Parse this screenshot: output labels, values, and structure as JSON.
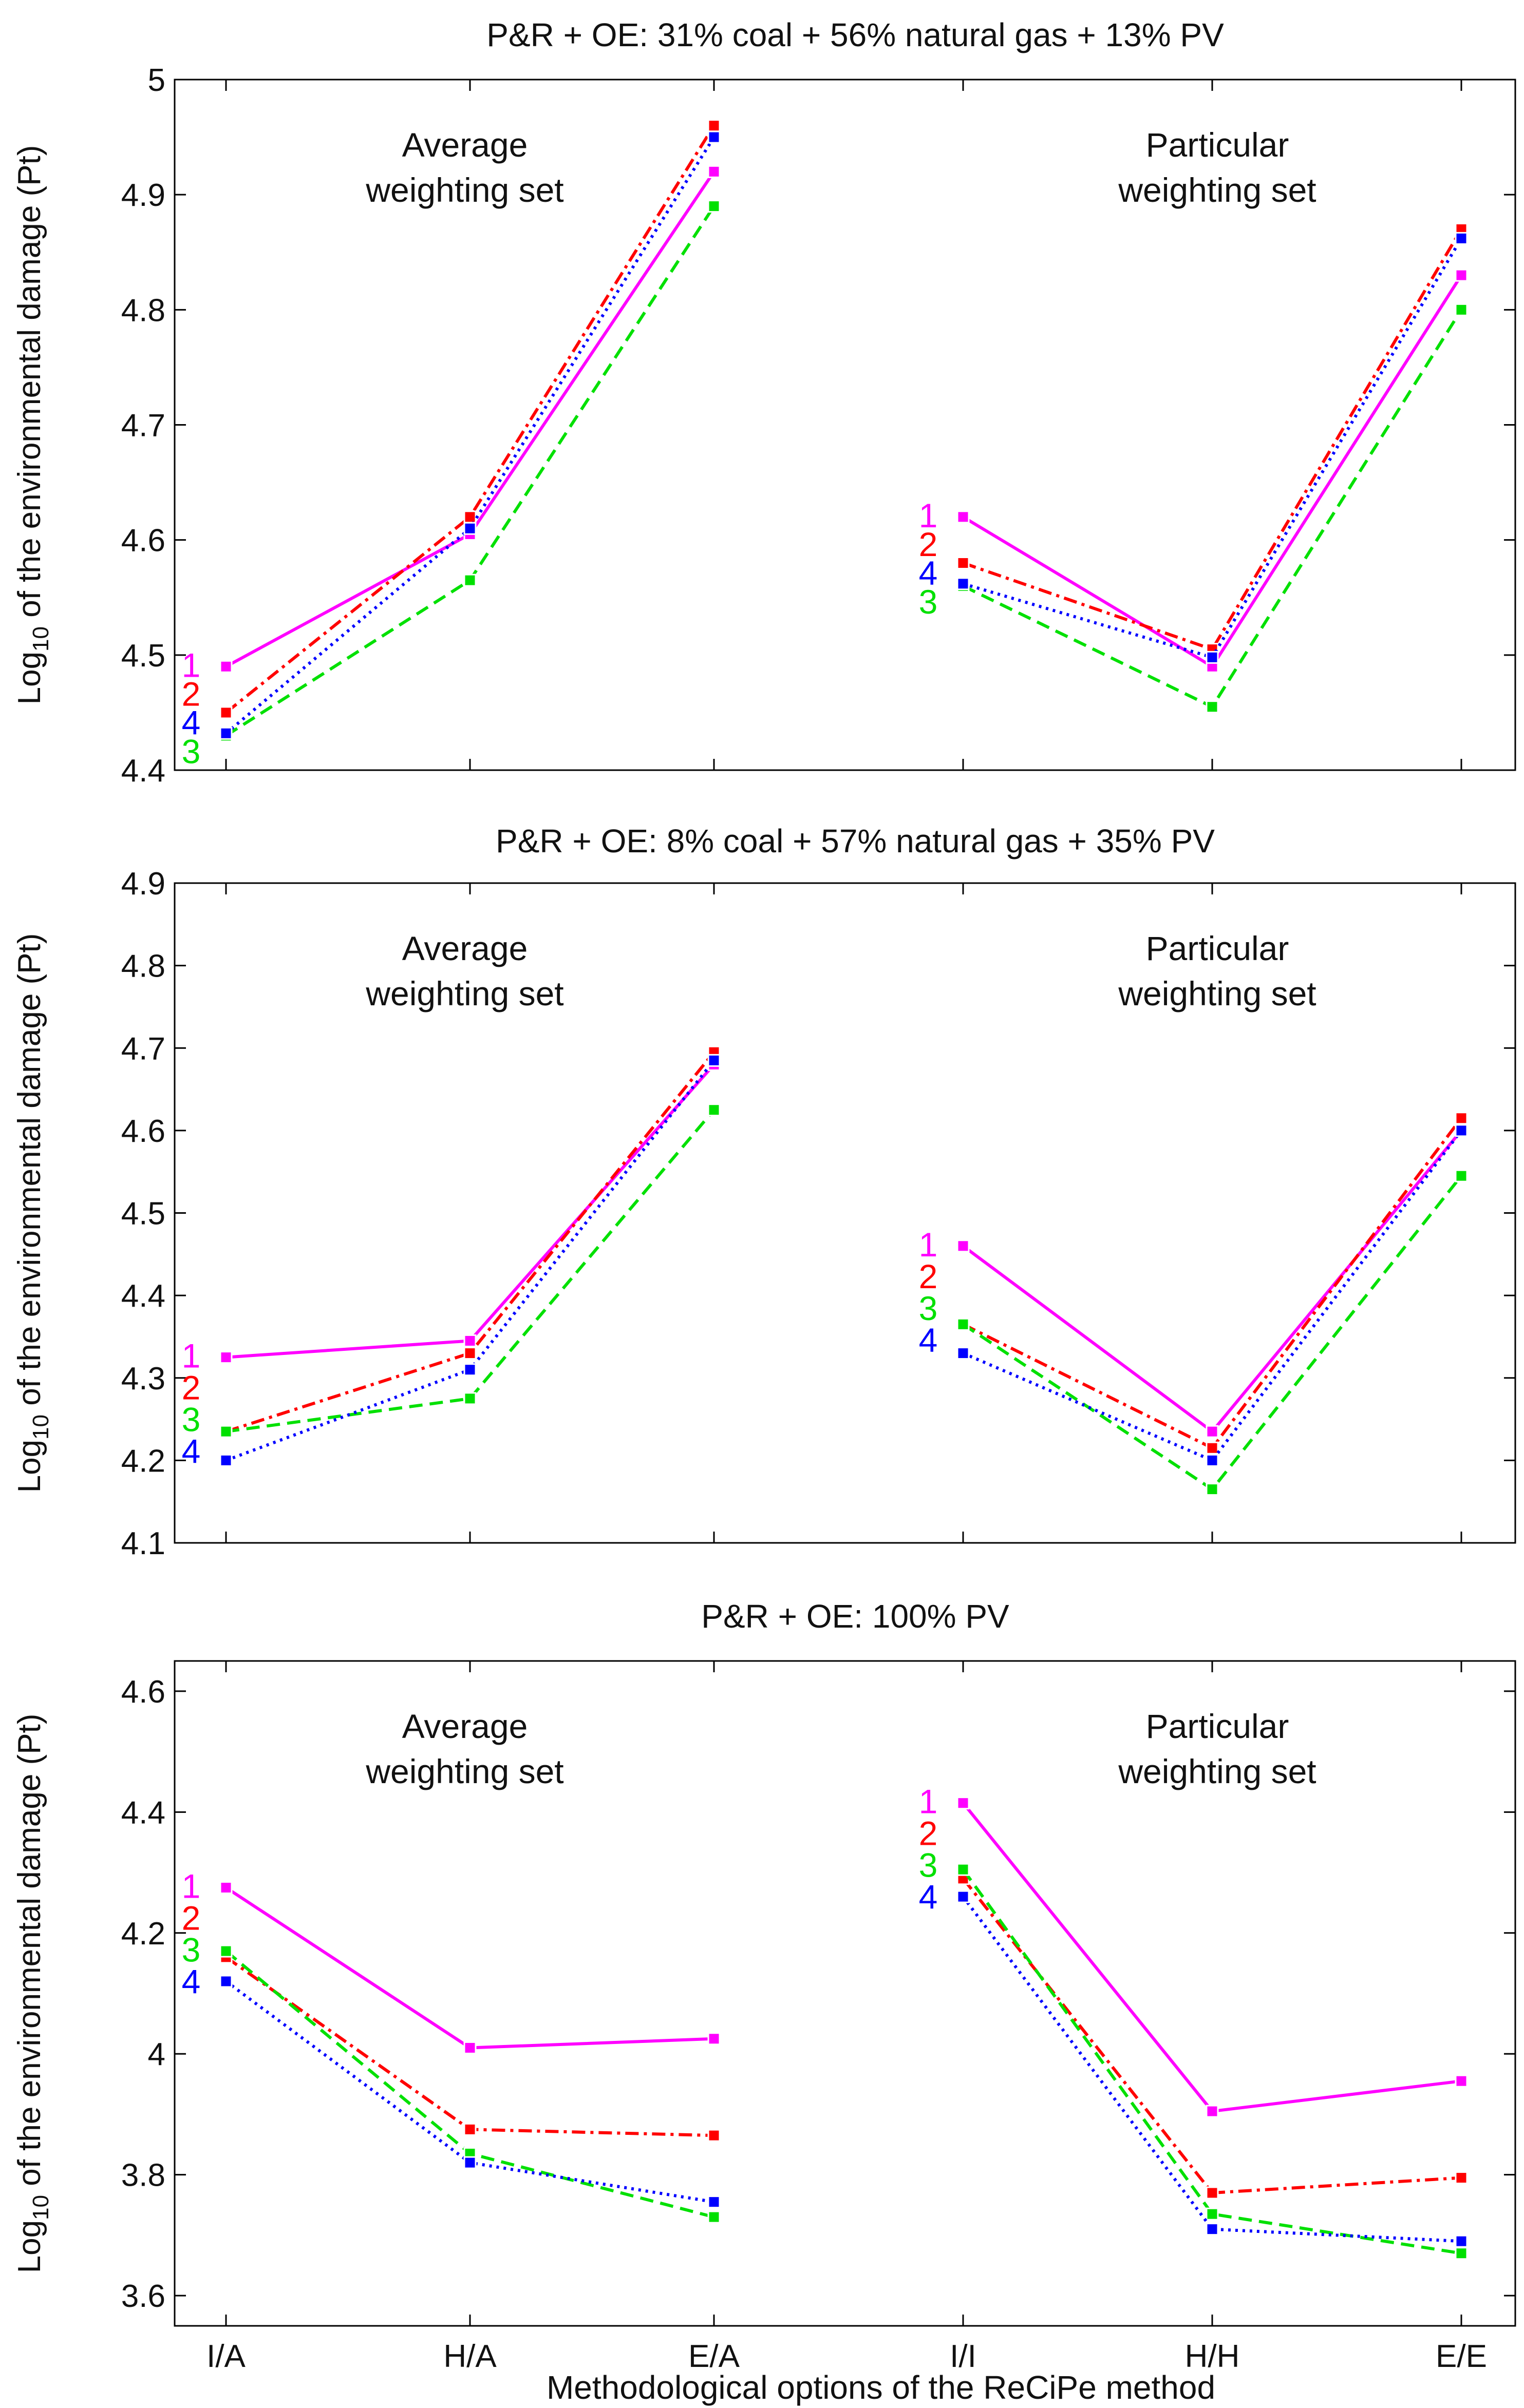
{
  "x_axis_title": "Methodological options of the ReCiPe method",
  "chart_data": [
    {
      "type": "line",
      "title": "P&R + OE: 31% coal + 56% natural gas + 13% PV",
      "ylabel_main": "Log",
      "ylabel_sub": "10",
      "ylabel_rest": " of the environmental damage (Pt)",
      "categories": [
        "I/A",
        "H/A",
        "E/A",
        "I/I",
        "H/H",
        "E/E"
      ],
      "ylim": [
        4.4,
        5.0
      ],
      "yticks": [
        4.4,
        4.5,
        4.6,
        4.7,
        4.8,
        4.9,
        5.0
      ],
      "ytick_labels": [
        "4.4",
        "4.5",
        "4.6",
        "4.7",
        "4.8",
        "4.9",
        "5"
      ],
      "groups": [
        {
          "label_lines": [
            "Average",
            "weighting set"
          ],
          "category_indices": [
            0,
            1,
            2
          ]
        },
        {
          "label_lines": [
            "Particular",
            "weighting set"
          ],
          "category_indices": [
            3,
            4,
            5
          ]
        }
      ],
      "series": [
        {
          "name": "1",
          "color": "#ff00ff",
          "style": "solid",
          "average": [
            4.49,
            4.605,
            4.92
          ],
          "particular": [
            4.62,
            4.49,
            4.83
          ]
        },
        {
          "name": "2",
          "color": "#ff0000",
          "style": "dashdot",
          "average": [
            4.45,
            4.62,
            4.96
          ],
          "particular": [
            4.58,
            4.505,
            4.87
          ]
        },
        {
          "name": "3",
          "color": "#00e000",
          "style": "dashed",
          "average": [
            4.43,
            4.565,
            4.89
          ],
          "particular": [
            4.56,
            4.455,
            4.8
          ]
        },
        {
          "name": "4",
          "color": "#0000ff",
          "style": "dotted",
          "average": [
            4.432,
            4.61,
            4.95
          ],
          "particular": [
            4.562,
            4.498,
            4.862
          ]
        }
      ],
      "end_labels": {
        "average": [
          "1",
          "2",
          "4",
          "3"
        ],
        "particular": [
          "1",
          "2",
          "4",
          "3"
        ]
      }
    },
    {
      "type": "line",
      "title": "P&R + OE: 8% coal + 57% natural gas + 35% PV",
      "ylabel_main": "Log",
      "ylabel_sub": "10",
      "ylabel_rest": " of the environmental damage (Pt)",
      "categories": [
        "I/A",
        "H/A",
        "E/A",
        "I/I",
        "H/H",
        "E/E"
      ],
      "ylim": [
        4.1,
        4.9
      ],
      "yticks": [
        4.1,
        4.2,
        4.3,
        4.4,
        4.5,
        4.6,
        4.7,
        4.8,
        4.9
      ],
      "ytick_labels": [
        "4.1",
        "4.2",
        "4.3",
        "4.4",
        "4.5",
        "4.6",
        "4.7",
        "4.8",
        "4.9"
      ],
      "groups": [
        {
          "label_lines": [
            "Average",
            "weighting set"
          ],
          "category_indices": [
            0,
            1,
            2
          ]
        },
        {
          "label_lines": [
            "Particular",
            "weighting set"
          ],
          "category_indices": [
            3,
            4,
            5
          ]
        }
      ],
      "series": [
        {
          "name": "1",
          "color": "#ff00ff",
          "style": "solid",
          "average": [
            4.325,
            4.345,
            4.68
          ],
          "particular": [
            4.46,
            4.235,
            4.6
          ]
        },
        {
          "name": "2",
          "color": "#ff0000",
          "style": "dashdot",
          "average": [
            4.235,
            4.33,
            4.695
          ],
          "particular": [
            4.365,
            4.215,
            4.615
          ]
        },
        {
          "name": "3",
          "color": "#00e000",
          "style": "dashed",
          "average": [
            4.235,
            4.275,
            4.625
          ],
          "particular": [
            4.365,
            4.165,
            4.545
          ]
        },
        {
          "name": "4",
          "color": "#0000ff",
          "style": "dotted",
          "average": [
            4.2,
            4.31,
            4.685
          ],
          "particular": [
            4.33,
            4.2,
            4.6
          ]
        }
      ],
      "end_labels": {
        "average": [
          "1",
          "2",
          "3",
          "4"
        ],
        "particular": [
          "1",
          "2",
          "3",
          "4"
        ]
      }
    },
    {
      "type": "line",
      "title": "P&R + OE: 100% PV",
      "ylabel_main": "Log",
      "ylabel_sub": "10",
      "ylabel_rest": " of the environmental damage (Pt)",
      "categories": [
        "I/A",
        "H/A",
        "E/A",
        "I/I",
        "H/H",
        "E/E"
      ],
      "ylim": [
        3.55,
        4.65
      ],
      "yticks": [
        3.6,
        3.8,
        4.0,
        4.2,
        4.4,
        4.6
      ],
      "ytick_labels": [
        "3.6",
        "3.8",
        "4",
        "4.2",
        "4.4",
        "4.6"
      ],
      "groups": [
        {
          "label_lines": [
            "Average",
            "weighting set"
          ],
          "category_indices": [
            0,
            1,
            2
          ]
        },
        {
          "label_lines": [
            "Particular",
            "weighting set"
          ],
          "category_indices": [
            3,
            4,
            5
          ]
        }
      ],
      "series": [
        {
          "name": "1",
          "color": "#ff00ff",
          "style": "solid",
          "average": [
            4.275,
            4.01,
            4.025
          ],
          "particular": [
            4.415,
            3.905,
            3.955
          ]
        },
        {
          "name": "2",
          "color": "#ff0000",
          "style": "dashdot",
          "average": [
            4.16,
            3.875,
            3.865
          ],
          "particular": [
            4.29,
            3.77,
            3.795
          ]
        },
        {
          "name": "3",
          "color": "#00e000",
          "style": "dashed",
          "average": [
            4.17,
            3.835,
            3.73
          ],
          "particular": [
            4.305,
            3.735,
            3.67
          ]
        },
        {
          "name": "4",
          "color": "#0000ff",
          "style": "dotted",
          "average": [
            4.12,
            3.82,
            3.755
          ],
          "particular": [
            4.26,
            3.71,
            3.69
          ]
        }
      ],
      "end_labels": {
        "average": [
          "1",
          "2",
          "3",
          "4"
        ],
        "particular": [
          "1",
          "2",
          "3",
          "4"
        ]
      }
    }
  ]
}
